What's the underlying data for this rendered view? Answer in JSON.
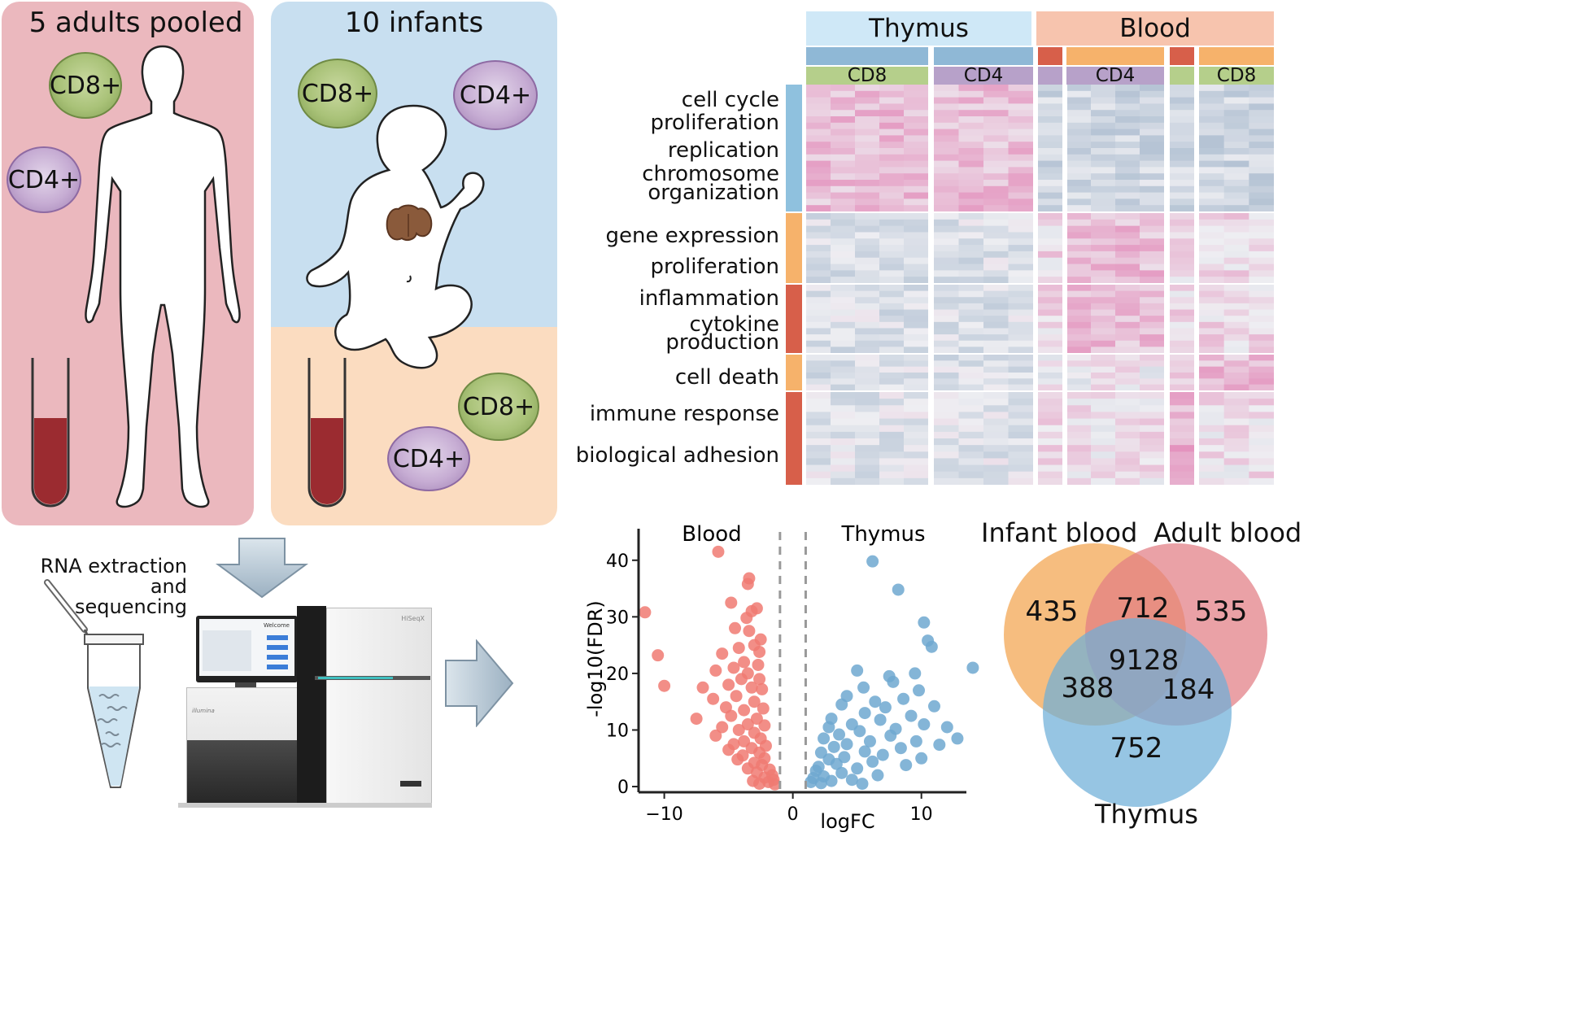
{
  "samples": {
    "adults": {
      "title": "5 adults pooled",
      "cells": [
        "CD8+",
        "CD4+"
      ],
      "bg": "#ebb8be"
    },
    "infants": {
      "title": "10 infants",
      "cells": [
        "CD8+",
        "CD4+",
        "CD8+",
        "CD4+"
      ],
      "bg_top": "#c8dff0",
      "bg_bottom": "#fbdcc0"
    },
    "thymus_color": "#8a5a3b",
    "blood_color": "#9b2b30"
  },
  "sequencing": {
    "label_line1": "RNA extraction and",
    "label_line2": "sequencing",
    "machine_brand": "HiSeqX",
    "machine_maker": "illumina",
    "screen_title": "Welcome"
  },
  "heatmap": {
    "tissue_headers": [
      "Thymus",
      "Blood"
    ],
    "cell_headers": [
      "CD8",
      "CD4",
      "CD4",
      "CD8"
    ],
    "row_labels": [
      "cell cycle",
      "proliferation",
      "replication",
      "chromosome",
      "organization",
      "gene expression",
      "proliferation",
      "inflammation",
      "cytokine",
      "production",
      "cell death",
      "immune response",
      "biological adhesion"
    ],
    "colors": {
      "thymus": "#cfe8f7",
      "blood": "#f7c4ae",
      "cd8": "#b5cf8b",
      "cd4": "#b7a1c9",
      "tissue_thymus_bar": "#8fb8d6",
      "tissue_blood_red": "#d75f4a",
      "tissue_blood_orange": "#f6b26b",
      "high": "#e48bb6",
      "low": "#9fb2c6"
    }
  },
  "chart_data": {
    "type": "scatter",
    "title": "",
    "xlabel": "logFC",
    "ylabel": "-log10(FDR)",
    "xlim": [
      -12,
      13.5
    ],
    "ylim": [
      -1,
      45
    ],
    "x_ticks": [
      -10,
      0,
      10
    ],
    "y_ticks": [
      0,
      10,
      20,
      30,
      40
    ],
    "threshold_lines_x": [
      -1,
      1
    ],
    "annotations": [
      "Blood",
      "Thymus"
    ],
    "series": [
      {
        "name": "Blood",
        "color": "#f07a72",
        "points": [
          [
            -5.8,
            41.5
          ],
          [
            -11.5,
            30.8
          ],
          [
            -10.5,
            23.2
          ],
          [
            -10.0,
            17.8
          ],
          [
            -7.5,
            12.0
          ],
          [
            -7.0,
            17.5
          ],
          [
            -3.4,
            36.8
          ],
          [
            -3.5,
            35.8
          ],
          [
            -4.8,
            32.5
          ],
          [
            -3.2,
            31.0
          ],
          [
            -3.6,
            29.8
          ],
          [
            -2.8,
            31.5
          ],
          [
            -4.5,
            28.0
          ],
          [
            -3.4,
            27.5
          ],
          [
            -2.5,
            26.0
          ],
          [
            -4.2,
            24.5
          ],
          [
            -3.0,
            25.0
          ],
          [
            -5.5,
            23.5
          ],
          [
            -2.6,
            23.8
          ],
          [
            -3.8,
            22.0
          ],
          [
            -4.6,
            21.0
          ],
          [
            -2.7,
            21.5
          ],
          [
            -6.0,
            20.5
          ],
          [
            -3.5,
            20.0
          ],
          [
            -4.0,
            19.0
          ],
          [
            -2.6,
            19.0
          ],
          [
            -5.0,
            18.0
          ],
          [
            -3.2,
            17.5
          ],
          [
            -2.4,
            17.2
          ],
          [
            -4.4,
            16.0
          ],
          [
            -6.2,
            15.5
          ],
          [
            -3.0,
            15.0
          ],
          [
            -5.2,
            14.0
          ],
          [
            -3.8,
            13.5
          ],
          [
            -2.3,
            13.8
          ],
          [
            -4.8,
            12.5
          ],
          [
            -2.8,
            12.0
          ],
          [
            -3.5,
            11.0
          ],
          [
            -5.5,
            10.5
          ],
          [
            -2.2,
            10.8
          ],
          [
            -4.2,
            10.0
          ],
          [
            -3.0,
            9.5
          ],
          [
            -6.0,
            9.0
          ],
          [
            -2.5,
            8.5
          ],
          [
            -3.8,
            8.0
          ],
          [
            -4.6,
            7.5
          ],
          [
            -2.1,
            7.2
          ],
          [
            -3.2,
            6.8
          ],
          [
            -5.0,
            6.5
          ],
          [
            -2.6,
            6.0
          ],
          [
            -3.9,
            5.5
          ],
          [
            -2.2,
            5.0
          ],
          [
            -4.3,
            4.8
          ],
          [
            -3.0,
            4.2
          ],
          [
            -2.4,
            3.8
          ],
          [
            -3.5,
            3.2
          ],
          [
            -1.8,
            3.0
          ],
          [
            -2.8,
            2.5
          ],
          [
            -1.6,
            2.0
          ],
          [
            -2.2,
            1.6
          ],
          [
            -1.5,
            1.2
          ],
          [
            -3.1,
            1.0
          ],
          [
            -1.9,
            0.8
          ],
          [
            -2.6,
            0.5
          ],
          [
            -1.4,
            0.4
          ]
        ]
      },
      {
        "name": "Thymus",
        "color": "#6fa8d0",
        "points": [
          [
            6.2,
            39.8
          ],
          [
            8.2,
            34.8
          ],
          [
            10.2,
            29.0
          ],
          [
            10.5,
            25.8
          ],
          [
            10.8,
            24.7
          ],
          [
            14.0,
            21.0
          ],
          [
            9.5,
            20.0
          ],
          [
            7.8,
            18.5
          ],
          [
            5.0,
            20.5
          ],
          [
            7.5,
            19.5
          ],
          [
            5.5,
            17.5
          ],
          [
            9.8,
            17.0
          ],
          [
            4.2,
            16.0
          ],
          [
            8.6,
            15.5
          ],
          [
            6.4,
            15.0
          ],
          [
            3.8,
            14.5
          ],
          [
            7.2,
            14.0
          ],
          [
            11.0,
            14.2
          ],
          [
            5.6,
            13.0
          ],
          [
            9.2,
            12.5
          ],
          [
            3.0,
            12.0
          ],
          [
            6.8,
            11.8
          ],
          [
            4.6,
            11.0
          ],
          [
            10.2,
            11.0
          ],
          [
            2.8,
            10.5
          ],
          [
            8.0,
            10.2
          ],
          [
            12.0,
            10.5
          ],
          [
            5.2,
            9.8
          ],
          [
            3.6,
            9.2
          ],
          [
            7.6,
            9.0
          ],
          [
            12.8,
            8.5
          ],
          [
            2.4,
            8.5
          ],
          [
            6.0,
            8.0
          ],
          [
            9.6,
            8.0
          ],
          [
            4.2,
            7.5
          ],
          [
            11.4,
            7.4
          ],
          [
            3.2,
            7.0
          ],
          [
            8.4,
            6.8
          ],
          [
            5.6,
            6.2
          ],
          [
            2.2,
            6.0
          ],
          [
            7.0,
            5.6
          ],
          [
            4.0,
            5.2
          ],
          [
            10.0,
            5.0
          ],
          [
            2.8,
            4.8
          ],
          [
            6.2,
            4.4
          ],
          [
            3.4,
            4.0
          ],
          [
            8.8,
            3.8
          ],
          [
            2.0,
            3.5
          ],
          [
            5.0,
            3.2
          ],
          [
            1.8,
            2.8
          ],
          [
            3.8,
            2.4
          ],
          [
            6.6,
            2.0
          ],
          [
            2.4,
            1.8
          ],
          [
            1.6,
            1.5
          ],
          [
            4.6,
            1.2
          ],
          [
            3.0,
            1.0
          ],
          [
            1.4,
            0.8
          ],
          [
            2.2,
            0.6
          ],
          [
            5.4,
            0.5
          ]
        ]
      }
    ]
  },
  "venn": {
    "labels": [
      "Infant blood",
      "Adult blood",
      "Thymus"
    ],
    "colors": [
      "#f5b168",
      "#e27d84",
      "#6eaed8"
    ],
    "counts": {
      "infant_only": "435",
      "infant_adult": "712",
      "adult_only": "535",
      "all_three": "9128",
      "infant_thymus": "388",
      "adult_thymus": "184",
      "thymus_only": "752"
    }
  }
}
